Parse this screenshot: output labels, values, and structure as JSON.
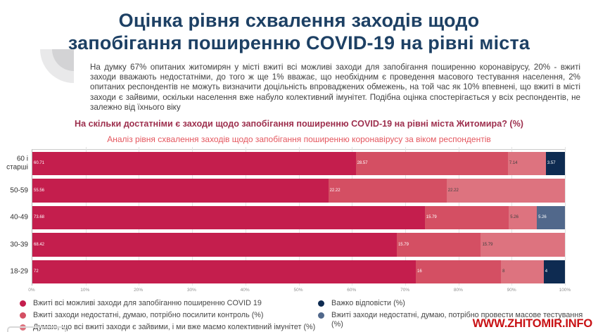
{
  "page": {
    "title_line1": "Оцінка рівня схвалення заходів щодо",
    "title_line2": "запобігання поширенню COVID-19 на рівні міста",
    "intro": "На думку 67% опитаних житомирян у місті вжиті всі можливі заходи для запобігання поширенню коронавірусу, 20% - вжиті заходи вважають недостатніми, до того ж ще 1% вважає, що необхідним є проведення масового тестування населення, 2% опитаних респондентів не можуть визначити доцільність впроваджених обмежень, на той час як 10% впевнені, що вжиті в місті заходи є зайвими, оскільки населення вже набуло колективний імунітет. Подібна оцінка спостерігається у всіх респондентів, не залежно від їхнього віку",
    "question": "На скільки достатніми є заходи щодо запобігання поширенню COVID-19 на рівні міста Житомира? (%)",
    "chart_caption": "Аналіз рівня схвалення заходів щодо запобігання поширенню коронавірусу за віком респондентів",
    "footer": "WWW.ZHITOMIR.INFO"
  },
  "colors": {
    "title_navy": "#1d4064",
    "question_maroon": "#9d2f4d",
    "caption_red": "#e4565e",
    "footer_red": "#c81114",
    "gridline": "#e3e3e3"
  },
  "chart_data": {
    "type": "bar",
    "orientation": "horizontal-stacked",
    "title": "Аналіз рівня схвалення заходів щодо запобігання поширенню коронавірусу за віком респондентів",
    "categories": [
      "60 і старші",
      "50-59",
      "40-49",
      "30-39",
      "18-29"
    ],
    "series": [
      {
        "name": "Вжиті всі можливі заходи для запобіганню поширенню COVID 19",
        "color": "#c41e4d",
        "label_color": "#ffffff",
        "values": [
          60.71,
          55.56,
          73.68,
          68.42,
          72
        ],
        "labels": [
          "60.71",
          "55.56",
          "73.68",
          "68.42",
          "72"
        ]
      },
      {
        "name": "Вжиті заходи недостатні, думаю, потрібно посилити контроль (%)",
        "color": "#d44f63",
        "label_color": "#ffffff",
        "values": [
          28.57,
          22.22,
          15.79,
          15.79,
          16
        ],
        "labels": [
          "28.57",
          "22.22",
          "15.79",
          "15.79",
          "16"
        ]
      },
      {
        "name": "Думаю, що всі вжиті заходи є зайвими, і ми вже маємо колективний імунітет (%)",
        "color": "#dd737f",
        "label_color": "#3f3f3f",
        "values": [
          7.14,
          22.22,
          5.26,
          15.79,
          8
        ],
        "labels": [
          "7.14",
          "22.22",
          "5.26",
          "15.79",
          "8"
        ]
      },
      {
        "name": "Важко відповісти (%)",
        "color": "#0e2b51",
        "label_color": "#ffffff",
        "values": [
          3.57,
          0,
          0,
          0,
          4
        ],
        "labels": [
          "3.57",
          "",
          "",
          "",
          "4"
        ]
      },
      {
        "name": "Вжиті заходи недостатні, думаю, потрібно провести масове тестування (%)",
        "color": "#51688b",
        "label_color": "#ffffff",
        "values": [
          0,
          0,
          5.26,
          0,
          0
        ],
        "labels": [
          "",
          "",
          "5.26",
          "",
          ""
        ]
      }
    ],
    "x_ticks": [
      "0%",
      "10%",
      "20%",
      "30%",
      "40%",
      "50%",
      "60%",
      "70%",
      "80%",
      "90%",
      "100%"
    ],
    "xlim": [
      0,
      100
    ],
    "grid": true,
    "legend_position": "bottom"
  },
  "legend": {
    "left": [
      {
        "label": "Вжиті всі можливі заходи для запобіганню поширенню COVID 19",
        "color": "#c41e4d"
      },
      {
        "label": "Вжиті заходи недостатні, думаю, потрібно посилити контроль (%)",
        "color": "#d44f63"
      },
      {
        "label": "Думаю, що всі вжиті заходи є зайвими, і ми вже маємо колективний імунітет (%)",
        "color": "#dd737f"
      }
    ],
    "right": [
      {
        "label": "Важко відповісти (%)",
        "color": "#0e2b51"
      },
      {
        "label": "Вжиті заходи недостатні, думаю, потрібно провести масове тестування (%)",
        "color": "#51688b"
      }
    ]
  }
}
